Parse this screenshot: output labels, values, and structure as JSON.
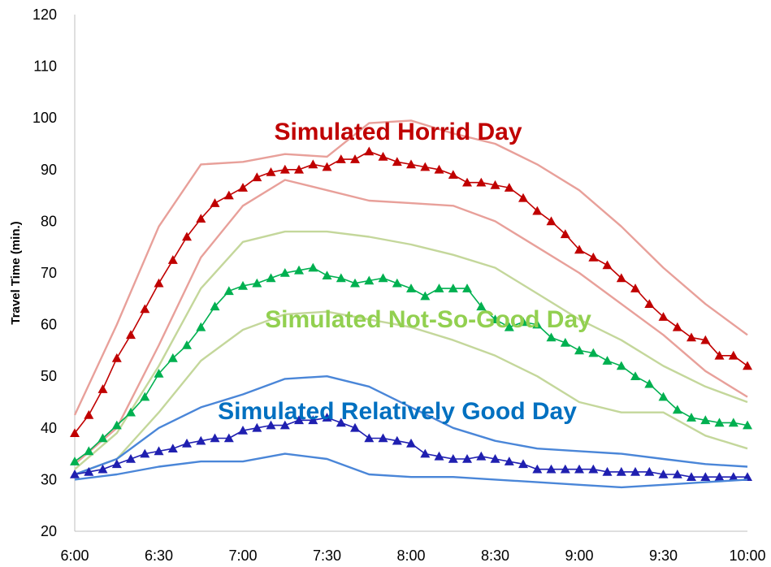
{
  "chart_data": {
    "type": "line",
    "ylabel": "Travel Time (min.)",
    "xlabel": "",
    "ylim": [
      20,
      120
    ],
    "yticks": [
      20,
      30,
      40,
      50,
      60,
      70,
      80,
      90,
      100,
      110,
      120
    ],
    "xticks": [
      "6:00",
      "6:30",
      "7:00",
      "7:30",
      "8:00",
      "8:30",
      "9:00",
      "9:30",
      "10:00"
    ],
    "xlim_minutes": [
      0,
      240
    ],
    "grid": false,
    "annotations": [
      {
        "text": "Simulated Horrid Day",
        "color": "#c00000"
      },
      {
        "text": "Simulated Not-So-Good Day",
        "color": "#92d050"
      },
      {
        "text": "Simulated Relatively Good Day",
        "color": "#0070c0"
      }
    ],
    "series": [
      {
        "color": "#e8a09a",
        "marker": "none",
        "x": [
          0,
          15,
          30,
          45,
          60,
          75,
          90,
          105,
          120,
          135,
          150,
          165,
          180,
          195,
          210,
          225,
          240
        ],
        "values": [
          42.5,
          60,
          79,
          91,
          91.5,
          93,
          92.5,
          99,
          99.5,
          97,
          95,
          91,
          86,
          79,
          71,
          64,
          58
        ]
      },
      {
        "color": "#c00000",
        "marker": "triangle",
        "x": [
          0,
          5,
          10,
          15,
          20,
          25,
          30,
          35,
          40,
          45,
          50,
          55,
          60,
          65,
          70,
          75,
          80,
          85,
          90,
          95,
          100,
          105,
          110,
          115,
          120,
          125,
          130,
          135,
          140,
          145,
          150,
          155,
          160,
          165,
          170,
          175,
          180,
          185,
          190,
          195,
          200,
          205,
          210,
          215,
          220,
          225,
          230,
          235,
          240
        ],
        "values": [
          39,
          42.5,
          47.5,
          53.5,
          58,
          63,
          68,
          72.5,
          77,
          80.5,
          83.5,
          85,
          86.5,
          88.5,
          89.5,
          90,
          90,
          91,
          90.5,
          92,
          92,
          93.5,
          92.5,
          91.5,
          91,
          90.5,
          90,
          89,
          87.5,
          87.5,
          87,
          86.5,
          84.5,
          82,
          80,
          77.5,
          74.5,
          73,
          71.5,
          69,
          67,
          64,
          61.5,
          59.5,
          57.5,
          57,
          54,
          54,
          52
        ]
      },
      {
        "color": "#e8a09a",
        "marker": "none",
        "x": [
          0,
          15,
          30,
          45,
          60,
          75,
          90,
          105,
          120,
          135,
          150,
          165,
          180,
          195,
          210,
          225,
          240
        ],
        "values": [
          33,
          40,
          56,
          73,
          83,
          88,
          86,
          84,
          83.5,
          83,
          80,
          75,
          70,
          64,
          58,
          51,
          46
        ]
      },
      {
        "color": "#c4d79b",
        "marker": "none",
        "x": [
          0,
          15,
          30,
          45,
          60,
          75,
          90,
          105,
          120,
          135,
          150,
          165,
          180,
          195,
          210,
          225,
          240
        ],
        "values": [
          32,
          39,
          52,
          67,
          76,
          78,
          78,
          77,
          75.5,
          73.5,
          71,
          66,
          61,
          57,
          52,
          48,
          45
        ]
      },
      {
        "color": "#00b050",
        "marker": "triangle",
        "x": [
          0,
          5,
          10,
          15,
          20,
          25,
          30,
          35,
          40,
          45,
          50,
          55,
          60,
          65,
          70,
          75,
          80,
          85,
          90,
          95,
          100,
          105,
          110,
          115,
          120,
          125,
          130,
          135,
          140,
          145,
          150,
          155,
          160,
          165,
          170,
          175,
          180,
          185,
          190,
          195,
          200,
          205,
          210,
          215,
          220,
          225,
          230,
          235,
          240
        ],
        "values": [
          33.5,
          35.5,
          38,
          40.5,
          43,
          46,
          50.5,
          53.5,
          56,
          59.5,
          63.5,
          66.5,
          67.5,
          68,
          69,
          70,
          70.5,
          71,
          69.5,
          69,
          68,
          68.5,
          69,
          68,
          67,
          65.5,
          67,
          67,
          67,
          63.5,
          61,
          59.5,
          60.5,
          60,
          57.5,
          56.5,
          55,
          54.5,
          53,
          52,
          50,
          48.5,
          46,
          43.5,
          42,
          41.5,
          41,
          41,
          40.5
        ]
      },
      {
        "color": "#c4d79b",
        "marker": "none",
        "x": [
          0,
          15,
          30,
          45,
          60,
          75,
          90,
          105,
          120,
          135,
          150,
          165,
          180,
          195,
          210,
          225,
          240
        ],
        "values": [
          31,
          34,
          43,
          53,
          59,
          62,
          62.5,
          61,
          59.5,
          57,
          54,
          50,
          45,
          43,
          43,
          38.5,
          36
        ]
      },
      {
        "color": "#4a86d8",
        "marker": "none",
        "x": [
          0,
          15,
          30,
          45,
          60,
          75,
          90,
          105,
          120,
          135,
          150,
          165,
          180,
          195,
          210,
          225,
          240
        ],
        "values": [
          31,
          34,
          40,
          44,
          46.5,
          49.5,
          50,
          48,
          44,
          40,
          37.5,
          36,
          35.5,
          35,
          34,
          33,
          32.5
        ]
      },
      {
        "color": "#1f1fb0",
        "marker": "triangle",
        "x": [
          0,
          5,
          10,
          15,
          20,
          25,
          30,
          35,
          40,
          45,
          50,
          55,
          60,
          65,
          70,
          75,
          80,
          85,
          90,
          95,
          100,
          105,
          110,
          115,
          120,
          125,
          130,
          135,
          140,
          145,
          150,
          155,
          160,
          165,
          170,
          175,
          180,
          185,
          190,
          195,
          200,
          205,
          210,
          215,
          220,
          225,
          230,
          235,
          240
        ],
        "values": [
          31,
          31.5,
          32,
          33,
          34,
          35,
          35.5,
          36,
          37,
          37.5,
          38,
          38,
          39.5,
          40,
          40.5,
          40.5,
          41.5,
          41.5,
          42,
          41,
          40,
          38,
          38,
          37.5,
          37,
          35,
          34.5,
          34,
          34,
          34.5,
          34,
          33.5,
          33,
          32,
          32,
          32,
          32,
          32,
          31.5,
          31.5,
          31.5,
          31.5,
          31,
          31,
          30.5,
          30.5,
          30.5,
          30.5,
          30.5
        ]
      },
      {
        "color": "#4a86d8",
        "marker": "none",
        "x": [
          0,
          15,
          30,
          45,
          60,
          75,
          90,
          105,
          120,
          135,
          150,
          165,
          180,
          195,
          210,
          225,
          240
        ],
        "values": [
          30,
          31,
          32.5,
          33.5,
          33.5,
          35,
          34,
          31,
          30.5,
          30.5,
          30,
          29.5,
          29,
          28.5,
          29,
          29.5,
          30
        ]
      }
    ]
  }
}
